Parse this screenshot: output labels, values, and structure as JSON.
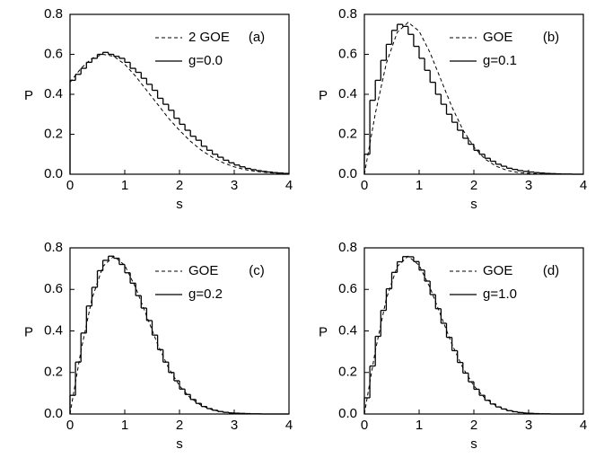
{
  "chart_data": [
    {
      "type": "line",
      "label": "(a)",
      "xlabel": "s",
      "ylabel": "P",
      "xlim": [
        0,
        4
      ],
      "ylim": [
        0,
        0.8
      ],
      "xticks": [
        0,
        1,
        2,
        3,
        4
      ],
      "yticks": [
        {
          "value": 0,
          "label": "0.0"
        },
        0.2,
        0.4,
        0.6,
        0.8
      ],
      "series": [
        {
          "name": "2 GOE",
          "style": "dashed",
          "color": "#000000",
          "x": [
            0,
            0.2,
            0.4,
            0.6,
            0.8,
            1.0,
            1.2,
            1.4,
            1.6,
            1.8,
            2.0,
            2.2,
            2.4,
            2.6,
            2.8,
            3.0,
            3.2,
            3.4,
            3.6,
            3.8,
            4.0
          ],
          "values": [
            0.46,
            0.53,
            0.58,
            0.6,
            0.59,
            0.55,
            0.49,
            0.42,
            0.35,
            0.28,
            0.22,
            0.165,
            0.12,
            0.085,
            0.057,
            0.037,
            0.023,
            0.014,
            0.008,
            0.004,
            0.002
          ]
        },
        {
          "name": "g=0.0",
          "style": "step",
          "color": "#000000",
          "bins": [
            0,
            0.1,
            0.2,
            0.3,
            0.4,
            0.5,
            0.6,
            0.7,
            0.8,
            0.9,
            1.0,
            1.1,
            1.2,
            1.3,
            1.4,
            1.5,
            1.6,
            1.7,
            1.8,
            1.9,
            2.0,
            2.1,
            2.2,
            2.3,
            2.4,
            2.5,
            2.6,
            2.7,
            2.8,
            2.9,
            3.0,
            3.1,
            3.2,
            3.3,
            3.4,
            3.5,
            3.6,
            3.7,
            3.8,
            3.9,
            4.0
          ],
          "values": [
            0.47,
            0.5,
            0.53,
            0.56,
            0.58,
            0.6,
            0.61,
            0.6,
            0.59,
            0.58,
            0.56,
            0.53,
            0.51,
            0.48,
            0.45,
            0.42,
            0.38,
            0.35,
            0.32,
            0.28,
            0.25,
            0.22,
            0.19,
            0.17,
            0.14,
            0.12,
            0.1,
            0.085,
            0.07,
            0.057,
            0.046,
            0.037,
            0.029,
            0.023,
            0.018,
            0.014,
            0.011,
            0.008,
            0.006,
            0.004
          ]
        }
      ]
    },
    {
      "type": "line",
      "label": "(b)",
      "xlabel": "s",
      "ylabel": "P",
      "xlim": [
        0,
        4
      ],
      "ylim": [
        0,
        0.8
      ],
      "xticks": [
        0,
        1,
        2,
        3,
        4
      ],
      "yticks": [
        {
          "value": 0,
          "label": "0.0"
        },
        0.2,
        0.4,
        0.6,
        0.8
      ],
      "series": [
        {
          "name": "GOE",
          "style": "dashed",
          "color": "#000000",
          "x": [
            0,
            0.2,
            0.4,
            0.6,
            0.8,
            1.0,
            1.2,
            1.4,
            1.6,
            1.8,
            2.0,
            2.2,
            2.4,
            2.6,
            2.8,
            3.0,
            3.2,
            3.4,
            3.6,
            3.8,
            4.0
          ],
          "values": [
            0,
            0.304,
            0.554,
            0.71,
            0.76,
            0.716,
            0.608,
            0.472,
            0.336,
            0.222,
            0.136,
            0.077,
            0.041,
            0.02,
            0.009,
            0.004,
            0.001,
            0,
            0,
            0,
            0
          ]
        },
        {
          "name": "g=0.1",
          "style": "step",
          "color": "#000000",
          "bins": [
            0,
            0.1,
            0.2,
            0.3,
            0.4,
            0.5,
            0.6,
            0.7,
            0.8,
            0.9,
            1.0,
            1.1,
            1.2,
            1.3,
            1.4,
            1.5,
            1.6,
            1.7,
            1.8,
            1.9,
            2.0,
            2.1,
            2.2,
            2.3,
            2.4,
            2.5,
            2.6,
            2.7,
            2.8,
            2.9,
            3.0,
            3.1,
            3.2,
            3.3,
            3.4,
            3.5,
            3.6,
            3.7,
            3.8,
            3.9,
            4.0
          ],
          "values": [
            0.1,
            0.37,
            0.47,
            0.57,
            0.65,
            0.72,
            0.75,
            0.74,
            0.7,
            0.64,
            0.58,
            0.52,
            0.46,
            0.4,
            0.35,
            0.3,
            0.26,
            0.22,
            0.18,
            0.15,
            0.12,
            0.1,
            0.08,
            0.065,
            0.05,
            0.04,
            0.03,
            0.024,
            0.018,
            0.014,
            0.011,
            0.008,
            0.006,
            0.004,
            0.003,
            0.002,
            0.001,
            0.001,
            0,
            0
          ]
        }
      ]
    },
    {
      "type": "line",
      "label": "(c)",
      "xlabel": "s",
      "ylabel": "P",
      "xlim": [
        0,
        4
      ],
      "ylim": [
        0,
        0.8
      ],
      "xticks": [
        0,
        1,
        2,
        3,
        4
      ],
      "yticks": [
        {
          "value": 0,
          "label": "0.0"
        },
        0.2,
        0.4,
        0.6,
        0.8
      ],
      "series": [
        {
          "name": "GOE",
          "style": "dashed",
          "color": "#000000",
          "x": [
            0,
            0.2,
            0.4,
            0.6,
            0.8,
            1.0,
            1.2,
            1.4,
            1.6,
            1.8,
            2.0,
            2.2,
            2.4,
            2.6,
            2.8,
            3.0,
            3.2,
            3.4,
            3.6,
            3.8,
            4.0
          ],
          "values": [
            0,
            0.304,
            0.554,
            0.71,
            0.76,
            0.716,
            0.608,
            0.472,
            0.336,
            0.222,
            0.136,
            0.077,
            0.041,
            0.02,
            0.009,
            0.004,
            0.001,
            0,
            0,
            0,
            0
          ]
        },
        {
          "name": "g=0.2",
          "style": "step",
          "color": "#000000",
          "bins": [
            0,
            0.1,
            0.2,
            0.3,
            0.4,
            0.5,
            0.6,
            0.7,
            0.8,
            0.9,
            1.0,
            1.1,
            1.2,
            1.3,
            1.4,
            1.5,
            1.6,
            1.7,
            1.8,
            1.9,
            2.0,
            2.1,
            2.2,
            2.3,
            2.4,
            2.5,
            2.6,
            2.7,
            2.8,
            2.9,
            3.0,
            3.1,
            3.2,
            3.3,
            3.4,
            3.5,
            3.6,
            3.7,
            3.8,
            3.9,
            4.0
          ],
          "values": [
            0.09,
            0.25,
            0.39,
            0.52,
            0.61,
            0.69,
            0.74,
            0.76,
            0.75,
            0.72,
            0.68,
            0.63,
            0.57,
            0.51,
            0.45,
            0.38,
            0.31,
            0.25,
            0.2,
            0.16,
            0.12,
            0.094,
            0.07,
            0.051,
            0.036,
            0.026,
            0.018,
            0.012,
            0.008,
            0.005,
            0.004,
            0.003,
            0.002,
            0.001,
            0.001,
            0,
            0,
            0,
            0,
            0
          ]
        }
      ]
    },
    {
      "type": "line",
      "label": "(d)",
      "xlabel": "s",
      "ylabel": "P",
      "xlim": [
        0,
        4
      ],
      "ylim": [
        0,
        0.8
      ],
      "xticks": [
        0,
        1,
        2,
        3,
        4
      ],
      "yticks": [
        {
          "value": 0,
          "label": "0.0"
        },
        0.2,
        0.4,
        0.6,
        0.8
      ],
      "series": [
        {
          "name": "GOE",
          "style": "dashed",
          "color": "#000000",
          "x": [
            0,
            0.2,
            0.4,
            0.6,
            0.8,
            1.0,
            1.2,
            1.4,
            1.6,
            1.8,
            2.0,
            2.2,
            2.4,
            2.6,
            2.8,
            3.0,
            3.2,
            3.4,
            3.6,
            3.8,
            4.0
          ],
          "values": [
            0,
            0.304,
            0.554,
            0.71,
            0.76,
            0.716,
            0.608,
            0.472,
            0.336,
            0.222,
            0.136,
            0.077,
            0.041,
            0.02,
            0.009,
            0.004,
            0.001,
            0,
            0,
            0,
            0
          ]
        },
        {
          "name": "g=1.0",
          "style": "step",
          "color": "#000000",
          "bins": [
            0,
            0.1,
            0.2,
            0.3,
            0.4,
            0.5,
            0.6,
            0.7,
            0.8,
            0.9,
            1.0,
            1.1,
            1.2,
            1.3,
            1.4,
            1.5,
            1.6,
            1.7,
            1.8,
            1.9,
            2.0,
            2.1,
            2.2,
            2.3,
            2.4,
            2.5,
            2.6,
            2.7,
            2.8,
            2.9,
            3.0,
            3.1,
            3.2,
            3.3,
            3.4,
            3.5,
            3.6,
            3.7,
            3.8,
            3.9,
            4.0
          ],
          "values": [
            0.078,
            0.231,
            0.374,
            0.499,
            0.603,
            0.682,
            0.733,
            0.758,
            0.757,
            0.734,
            0.693,
            0.64,
            0.575,
            0.507,
            0.437,
            0.369,
            0.305,
            0.248,
            0.197,
            0.155,
            0.119,
            0.09,
            0.066,
            0.048,
            0.034,
            0.024,
            0.016,
            0.011,
            0.007,
            0.004,
            0.003,
            0.002,
            0.001,
            0.001,
            0,
            0,
            0,
            0,
            0,
            0
          ]
        }
      ]
    }
  ]
}
